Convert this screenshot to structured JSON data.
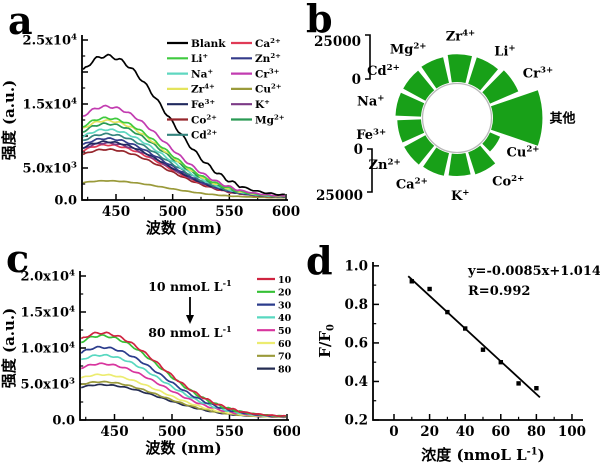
{
  "figure": {
    "background": "#ffffff",
    "text_color": "#000000"
  },
  "panels": {
    "a": {
      "letter": "a"
    },
    "b": {
      "letter": "b"
    },
    "c": {
      "letter": "c"
    },
    "d": {
      "letter": "d"
    }
  },
  "chart_data": [
    {
      "id": "a",
      "type": "line",
      "xlabel": "波数 (nm)",
      "ylabel": "强度 (a.u.)",
      "xlim": [
        420,
        600
      ],
      "ylim": [
        0,
        25000
      ],
      "xticks": [
        {
          "v": 450,
          "t": "450"
        },
        {
          "v": 500,
          "t": "500"
        },
        {
          "v": 550,
          "t": "550"
        },
        {
          "v": 600,
          "t": "600"
        }
      ],
      "yticks": [
        {
          "v": 0,
          "t": "0.0"
        },
        {
          "v": 5000,
          "t": "5.0x10^{3}"
        },
        {
          "v": 10000,
          "t": ""
        },
        {
          "v": 15000,
          "t": "1.5x10^{4}"
        },
        {
          "v": 20000,
          "t": ""
        },
        {
          "v": 25000,
          "t": "2.5x10^{4}"
        }
      ],
      "peak_nm": 441,
      "legend_position": "top-right",
      "series": [
        {
          "name": "Blank",
          "color": "#000000",
          "peak": 22500
        },
        {
          "name": "Li^{+}",
          "color": "#3fca3f",
          "peak": 12800
        },
        {
          "name": "Na^{+}",
          "color": "#5fd7c0",
          "peak": 11000
        },
        {
          "name": "Zr^{4+}",
          "color": "#e4e45c",
          "peak": 12400
        },
        {
          "name": "Fe^{3+}",
          "color": "#20295e",
          "peak": 9100
        },
        {
          "name": "Co^{2+}",
          "color": "#96262c",
          "peak": 7900
        },
        {
          "name": "Cd^{2+}",
          "color": "#35847e",
          "peak": 10300
        },
        {
          "name": "Ca^{2+}",
          "color": "#e03a56",
          "peak": 8600
        },
        {
          "name": "Zn^{2+}",
          "color": "#343b8a",
          "peak": 9600
        },
        {
          "name": "Cr^{3+}",
          "color": "#c23cb0",
          "peak": 14600
        },
        {
          "name": "Cu^{2+}",
          "color": "#9a9a3a",
          "peak": 3000
        },
        {
          "name": "K^{+}",
          "color": "#7c3a86",
          "peak": 8900
        },
        {
          "name": "Mg^{2+}",
          "color": "#2a9a55",
          "peak": 11900
        }
      ]
    },
    {
      "id": "b",
      "type": "rose",
      "bar_color": "#18a018",
      "scale_max": 25000,
      "scale_top": {
        "high": "25000",
        "low": "0"
      },
      "scale_bottom": {
        "low": "0",
        "high": "25000"
      },
      "wedges": [
        {
          "label": "其他",
          "value": 22500,
          "wide": true
        },
        {
          "label": "Cr^{3+}",
          "value": 14000
        },
        {
          "label": "Li^{+}",
          "value": 12600
        },
        {
          "label": "Zr^{4+}",
          "value": 12600
        },
        {
          "label": "Mg^{2+}",
          "value": 12000
        },
        {
          "label": "Cd^{2+}",
          "value": 11500
        },
        {
          "label": "Na^{+}",
          "value": 11600
        },
        {
          "label": "Fe^{3+}",
          "value": 10800
        },
        {
          "label": "Zn^{2+}",
          "value": 11000
        },
        {
          "label": "Ca^{2+}",
          "value": 10600
        },
        {
          "label": "K^{+}",
          "value": 10000
        },
        {
          "label": "Co^{2+}",
          "value": 10600
        },
        {
          "label": "Cu^{2+}",
          "value": 5000
        }
      ]
    },
    {
      "id": "c",
      "type": "line",
      "xlabel": "波数 (nm)",
      "ylabel": "强度 (a.u.)",
      "xlim": [
        420,
        600
      ],
      "ylim": [
        0,
        20000
      ],
      "xticks": [
        {
          "v": 450,
          "t": "450"
        },
        {
          "v": 500,
          "t": "500"
        },
        {
          "v": 550,
          "t": "550"
        },
        {
          "v": 600,
          "t": "600"
        }
      ],
      "yticks": [
        {
          "v": 0,
          "t": "0.0"
        },
        {
          "v": 5000,
          "t": "5.0x10^{3}"
        },
        {
          "v": 10000,
          "t": "1.0x10^{4}"
        },
        {
          "v": 15000,
          "t": "1.5x10^{4}"
        },
        {
          "v": 20000,
          "t": "2.0x10^{4}"
        }
      ],
      "peak_nm": 438,
      "legend_position": "right",
      "annotation": {
        "from": "10 nmoL L^{-1}",
        "to": "80 nmoL L^{-1}"
      },
      "series": [
        {
          "name": "10",
          "color": "#cf2440",
          "peak": 12100
        },
        {
          "name": "20",
          "color": "#35c035",
          "peak": 11700
        },
        {
          "name": "30",
          "color": "#2b3c8c",
          "peak": 10100
        },
        {
          "name": "40",
          "color": "#58d8c0",
          "peak": 9000
        },
        {
          "name": "50",
          "color": "#d8359e",
          "peak": 7800
        },
        {
          "name": "60",
          "color": "#ecec70",
          "peak": 6300
        },
        {
          "name": "70",
          "color": "#9a9a3a",
          "peak": 5300
        },
        {
          "name": "80",
          "color": "#242c52",
          "peak": 4900
        }
      ]
    },
    {
      "id": "d",
      "type": "scatter",
      "xlabel": "浓度 (nmoL L^{-1})",
      "ylabel": "F/F_{0}",
      "xlim": [
        -11.8,
        106.2
      ],
      "ylim": [
        0.2,
        1.02
      ],
      "xticks": [
        {
          "v": 0,
          "t": "0"
        },
        {
          "v": 20,
          "t": "20"
        },
        {
          "v": 40,
          "t": "40"
        },
        {
          "v": 60,
          "t": "60"
        },
        {
          "v": 80,
          "t": "80"
        },
        {
          "v": 100,
          "t": "100"
        }
      ],
      "yticks": [
        {
          "v": 0.2,
          "t": "0.2"
        },
        {
          "v": 0.4,
          "t": "0.4"
        },
        {
          "v": 0.6,
          "t": "0.6"
        },
        {
          "v": 0.8,
          "t": "0.8"
        },
        {
          "v": 1.0,
          "t": "1.0"
        }
      ],
      "points": [
        [
          10,
          0.92
        ],
        [
          20,
          0.88
        ],
        [
          30,
          0.76
        ],
        [
          40,
          0.675
        ],
        [
          50,
          0.565
        ],
        [
          60,
          0.5
        ],
        [
          70,
          0.39
        ],
        [
          80,
          0.365
        ]
      ],
      "fit": {
        "slope": -0.0085,
        "intercept": 1.0143,
        "x_start": 8,
        "x_end": 82
      },
      "equation": "y=-0.0085x+1.0143",
      "r_value": "R=0.992"
    }
  ]
}
